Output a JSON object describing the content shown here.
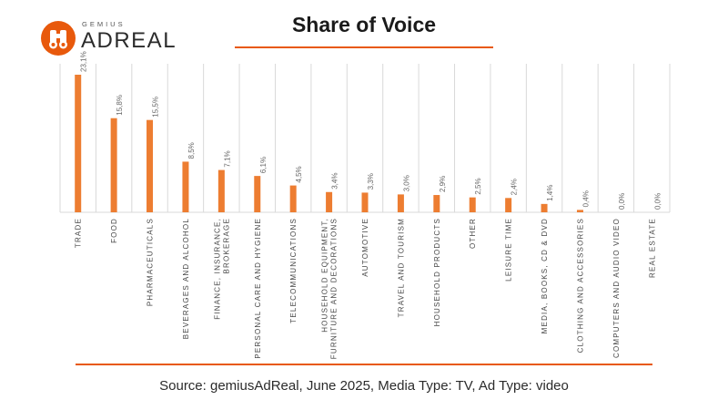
{
  "brand": {
    "top": "GEMIUS",
    "name": "ADREAL"
  },
  "colors": {
    "accent": "#e8590c",
    "bar": "#ed7d31",
    "grid": "#d9d9d9"
  },
  "chart_data": {
    "type": "bar",
    "title": "Share of Voice",
    "categories": [
      "TRADE",
      "FOOD",
      "PHARMACEUTICALS",
      "BEVERAGES AND ALCOHOL",
      [
        "FINANCE, INSURANCE,",
        "BROKERAGE"
      ],
      "PERSONAL CARE AND HYGIENE",
      "TELECOMMUNICATIONS",
      [
        "HOUSEHOLD EQUIPMENT,",
        "FURNITURE AND DECORATIONS"
      ],
      "AUTOMOTIVE",
      "TRAVEL AND TOURISM",
      "HOUSEHOLD PRODUCTS",
      "OTHER",
      "LEISURE TIME",
      "MEDIA, BOOKS, CD & DVD",
      "CLOTHING AND ACCESSORIES",
      "COMPUTERS AND AUDIO VIDEO",
      "REAL ESTATE"
    ],
    "values": [
      23.1,
      15.8,
      15.5,
      8.5,
      7.1,
      6.1,
      4.5,
      3.4,
      3.3,
      3.0,
      2.9,
      2.5,
      2.4,
      1.4,
      0.4,
      0.0,
      0.0
    ],
    "labels": [
      "23,1%",
      "15,8%",
      "15,5%",
      "8,5%",
      "7,1%",
      "6,1%",
      "4,5%",
      "3,4%",
      "3,3%",
      "3,0%",
      "2,9%",
      "2,5%",
      "2,4%",
      "1,4%",
      "0,4%",
      "0,0%",
      "0,0%"
    ],
    "ylim": [
      0,
      23.1
    ],
    "grid": true,
    "legend": "none"
  },
  "source": "Source: gemiusAdReal, June 2025, Media Type: TV, Ad Type: video"
}
